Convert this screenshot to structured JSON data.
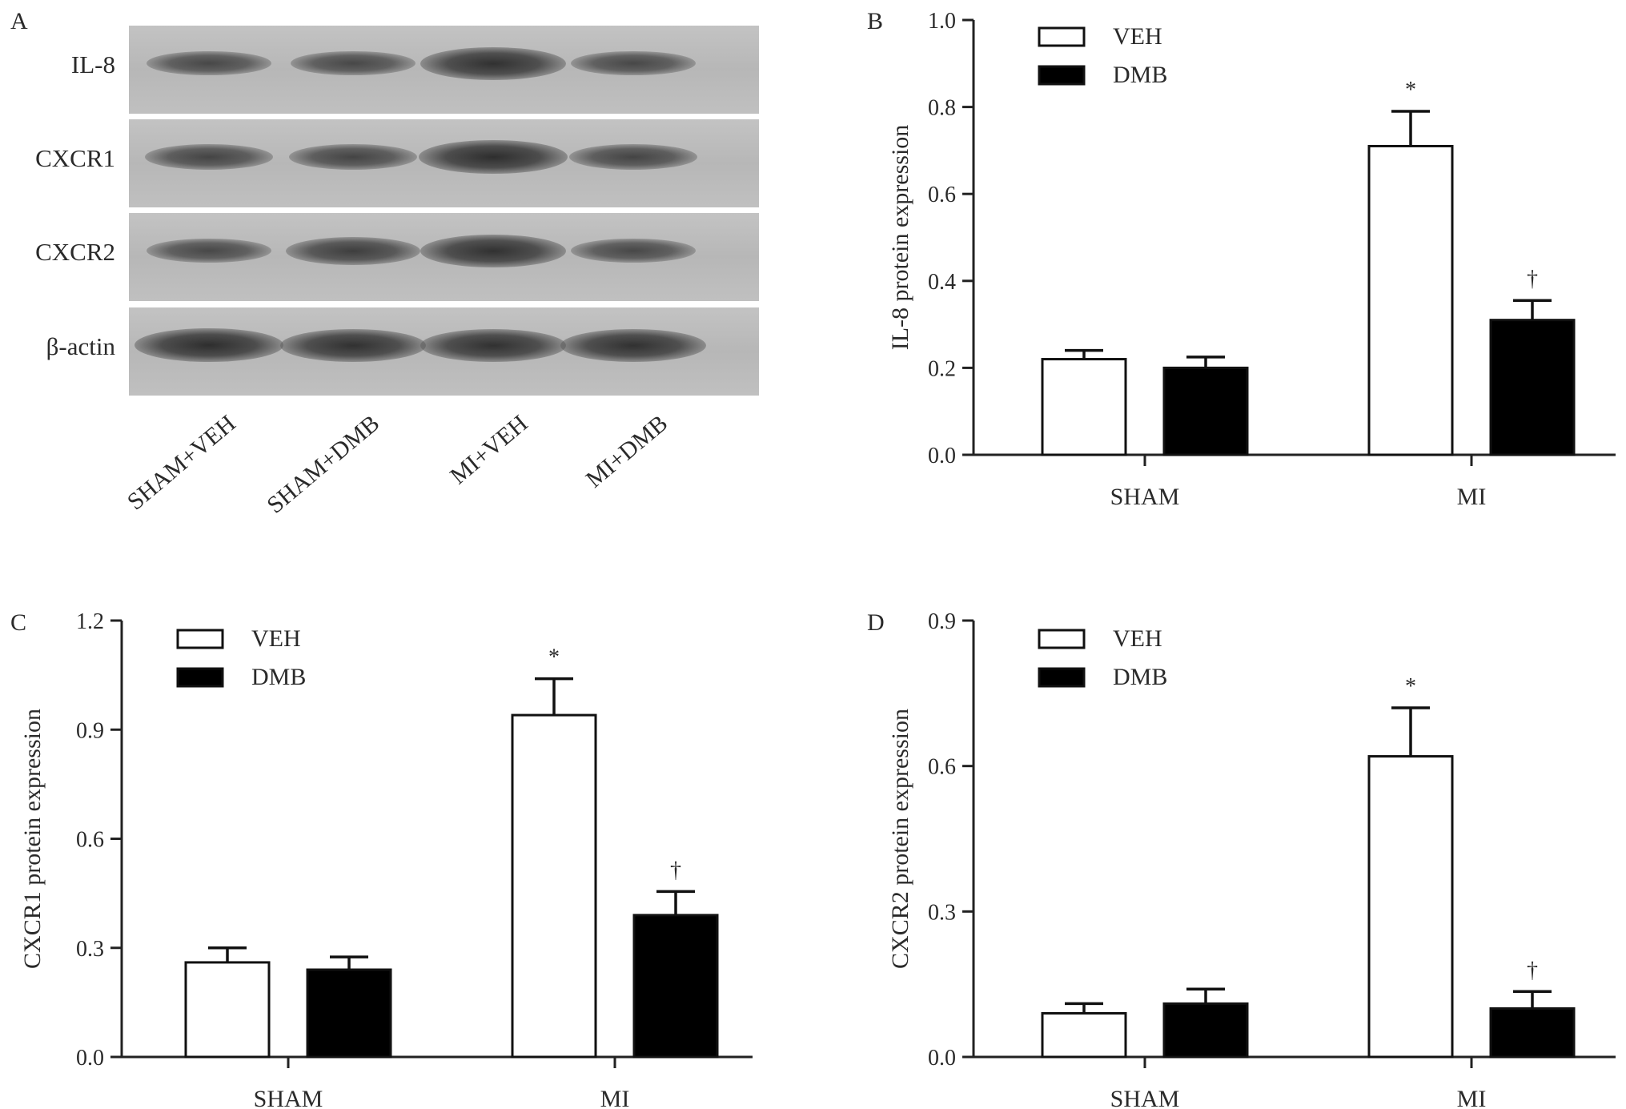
{
  "panels": {
    "a": {
      "letter": "A",
      "proteins": [
        {
          "label": "IL-8",
          "bands": [
            0.55,
            0.55,
            0.9,
            0.55
          ]
        },
        {
          "label": "CXCR1",
          "bands": [
            0.6,
            0.6,
            0.95,
            0.6
          ]
        },
        {
          "label": "CXCR2",
          "bands": [
            0.55,
            0.7,
            0.9,
            0.55
          ]
        },
        {
          "label": "β-actin",
          "bands": [
            0.95,
            0.9,
            0.9,
            0.9
          ]
        }
      ],
      "lanes": [
        "SHAM+VEH",
        "SHAM+DMB",
        "MI+VEH",
        "MI+DMB"
      ]
    },
    "b": {
      "letter": "B"
    },
    "c": {
      "letter": "C"
    },
    "d": {
      "letter": "D"
    }
  },
  "colors": {
    "veh_fill": "#ffffff",
    "dmb_fill": "#000000",
    "axis": "#222222"
  },
  "chart_data": [
    {
      "id": "b",
      "type": "bar",
      "categories": [
        "SHAM",
        "MI"
      ],
      "series": [
        {
          "name": "VEH",
          "values": [
            0.22,
            0.71
          ],
          "errors": [
            0.02,
            0.08
          ],
          "annotations": [
            "",
            "*"
          ]
        },
        {
          "name": "DMB",
          "values": [
            0.2,
            0.31
          ],
          "errors": [
            0.025,
            0.045
          ],
          "annotations": [
            "",
            "†"
          ]
        }
      ],
      "ylabel": "IL-8 protein expression",
      "xlabel": "",
      "ylim": [
        0,
        1.0
      ],
      "yticks": [
        "0.0",
        "0.2",
        "0.4",
        "0.6",
        "0.8",
        "1.0"
      ],
      "legend": "top-left"
    },
    {
      "id": "c",
      "type": "bar",
      "categories": [
        "SHAM",
        "MI"
      ],
      "series": [
        {
          "name": "VEH",
          "values": [
            0.26,
            0.94
          ],
          "errors": [
            0.04,
            0.1
          ],
          "annotations": [
            "",
            "*"
          ]
        },
        {
          "name": "DMB",
          "values": [
            0.24,
            0.39
          ],
          "errors": [
            0.035,
            0.065
          ],
          "annotations": [
            "",
            "†"
          ]
        }
      ],
      "ylabel": "CXCR1 protein expression",
      "xlabel": "",
      "ylim": [
        0,
        1.2
      ],
      "yticks": [
        "0.0",
        "0.3",
        "0.6",
        "0.9",
        "1.2"
      ],
      "legend": "top-left"
    },
    {
      "id": "d",
      "type": "bar",
      "categories": [
        "SHAM",
        "MI"
      ],
      "series": [
        {
          "name": "VEH",
          "values": [
            0.09,
            0.62
          ],
          "errors": [
            0.02,
            0.1
          ],
          "annotations": [
            "",
            "*"
          ]
        },
        {
          "name": "DMB",
          "values": [
            0.11,
            0.1
          ],
          "errors": [
            0.03,
            0.035
          ],
          "annotations": [
            "",
            "†"
          ]
        }
      ],
      "ylabel": "CXCR2 protein expression",
      "xlabel": "",
      "ylim": [
        0,
        0.9
      ],
      "yticks": [
        "0.0",
        "0.3",
        "0.6",
        "0.9"
      ],
      "legend": "top-left"
    }
  ]
}
